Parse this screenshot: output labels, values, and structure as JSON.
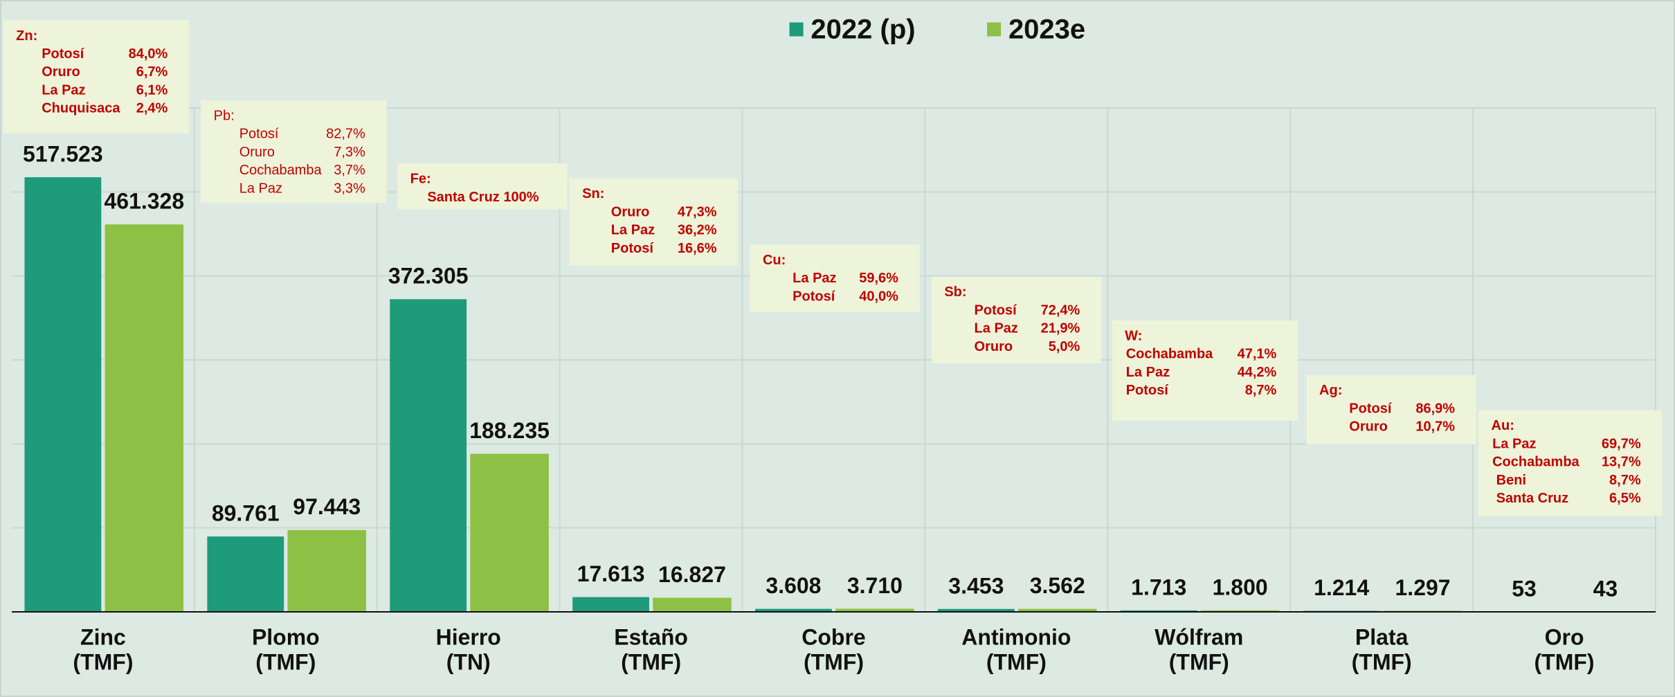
{
  "chart_data": {
    "type": "bar",
    "categories": [
      [
        "Zinc",
        "(TMF)"
      ],
      [
        "Plomo",
        "(TMF)"
      ],
      [
        "Hierro",
        "(TN)"
      ],
      [
        "Estaño",
        "(TMF)"
      ],
      [
        "Cobre",
        "(TMF)"
      ],
      [
        "Antimonio",
        "(TMF)"
      ],
      [
        "Wólfram",
        "(TMF)"
      ],
      [
        "Plata",
        "(TMF)"
      ],
      [
        "Oro",
        "(TMF)"
      ]
    ],
    "series": [
      {
        "name": "2022 (p)",
        "color": "#1e9b7b",
        "values": [
          517523,
          89761,
          372305,
          17613,
          3608,
          3453,
          1713,
          1214,
          53
        ],
        "value_labels": [
          "517.523",
          "89.761",
          "372.305",
          "17.613",
          "3.608",
          "3.453",
          "1.713",
          "1.214",
          "53"
        ]
      },
      {
        "name": "2023e",
        "color": "#8cc145",
        "values": [
          461328,
          97443,
          188235,
          16827,
          3710,
          3562,
          1800,
          1297,
          43
        ],
        "value_labels": [
          "461.328",
          "97.443",
          "188.235",
          "16.827",
          "3.710",
          "3.562",
          "1.800",
          "1.297",
          "43"
        ]
      }
    ],
    "ylim": [
      0,
      600000
    ],
    "yticks": [
      0,
      100000,
      200000,
      300000,
      400000,
      500000,
      600000
    ],
    "grid": true,
    "legend": "top",
    "annotations": [
      {
        "title": "Zn:",
        "bold": true,
        "rows": [
          [
            "Potosí",
            "84,0%"
          ],
          [
            "Oruro",
            "6,7%"
          ],
          [
            "La Paz",
            "6,1%"
          ],
          [
            "Chuquisaca",
            "2,4%"
          ]
        ]
      },
      {
        "title": "Pb:",
        "bold": false,
        "rows": [
          [
            "Potosí",
            "82,7%"
          ],
          [
            "Oruro",
            "7,3%"
          ],
          [
            "Cochabamba",
            "3,7%"
          ],
          [
            "La Paz",
            "3,3%"
          ]
        ]
      },
      {
        "title": "Fe:",
        "bold": true,
        "rows": [
          [
            "Santa Cruz 100%"
          ]
        ]
      },
      {
        "title": "Sn:",
        "bold": true,
        "rows": [
          [
            "Oruro",
            "47,3%"
          ],
          [
            "La Paz",
            "36,2%"
          ],
          [
            "Potosí",
            "16,6%"
          ]
        ]
      },
      {
        "title": "Cu:",
        "bold": true,
        "rows": [
          [
            "La Paz",
            "59,6%"
          ],
          [
            "Potosí",
            "40,0%"
          ]
        ]
      },
      {
        "title": "Sb:",
        "bold": true,
        "rows": [
          [
            "Potosí",
            "72,4%"
          ],
          [
            "La Paz",
            "21,9%"
          ],
          [
            "Oruro",
            "5,0%"
          ]
        ]
      },
      {
        "title": "W:",
        "bold": true,
        "rows": [
          [
            "Cochabamba",
            "47,1%"
          ],
          [
            "La Paz",
            "44,2%"
          ],
          [
            "Potosí",
            "8,7%"
          ]
        ]
      },
      {
        "title": "Ag:",
        "bold": true,
        "rows": [
          [
            "Potosí",
            "86,9%"
          ],
          [
            "Oruro",
            "10,7%"
          ]
        ]
      },
      {
        "title": "Au:",
        "bold": true,
        "rows": [
          [
            "La Paz",
            "69,7%"
          ],
          [
            "Cochabamba",
            "13,7%"
          ],
          [
            " Beni",
            "8,7%"
          ],
          [
            " Santa Cruz",
            "6,5%"
          ]
        ]
      }
    ]
  }
}
